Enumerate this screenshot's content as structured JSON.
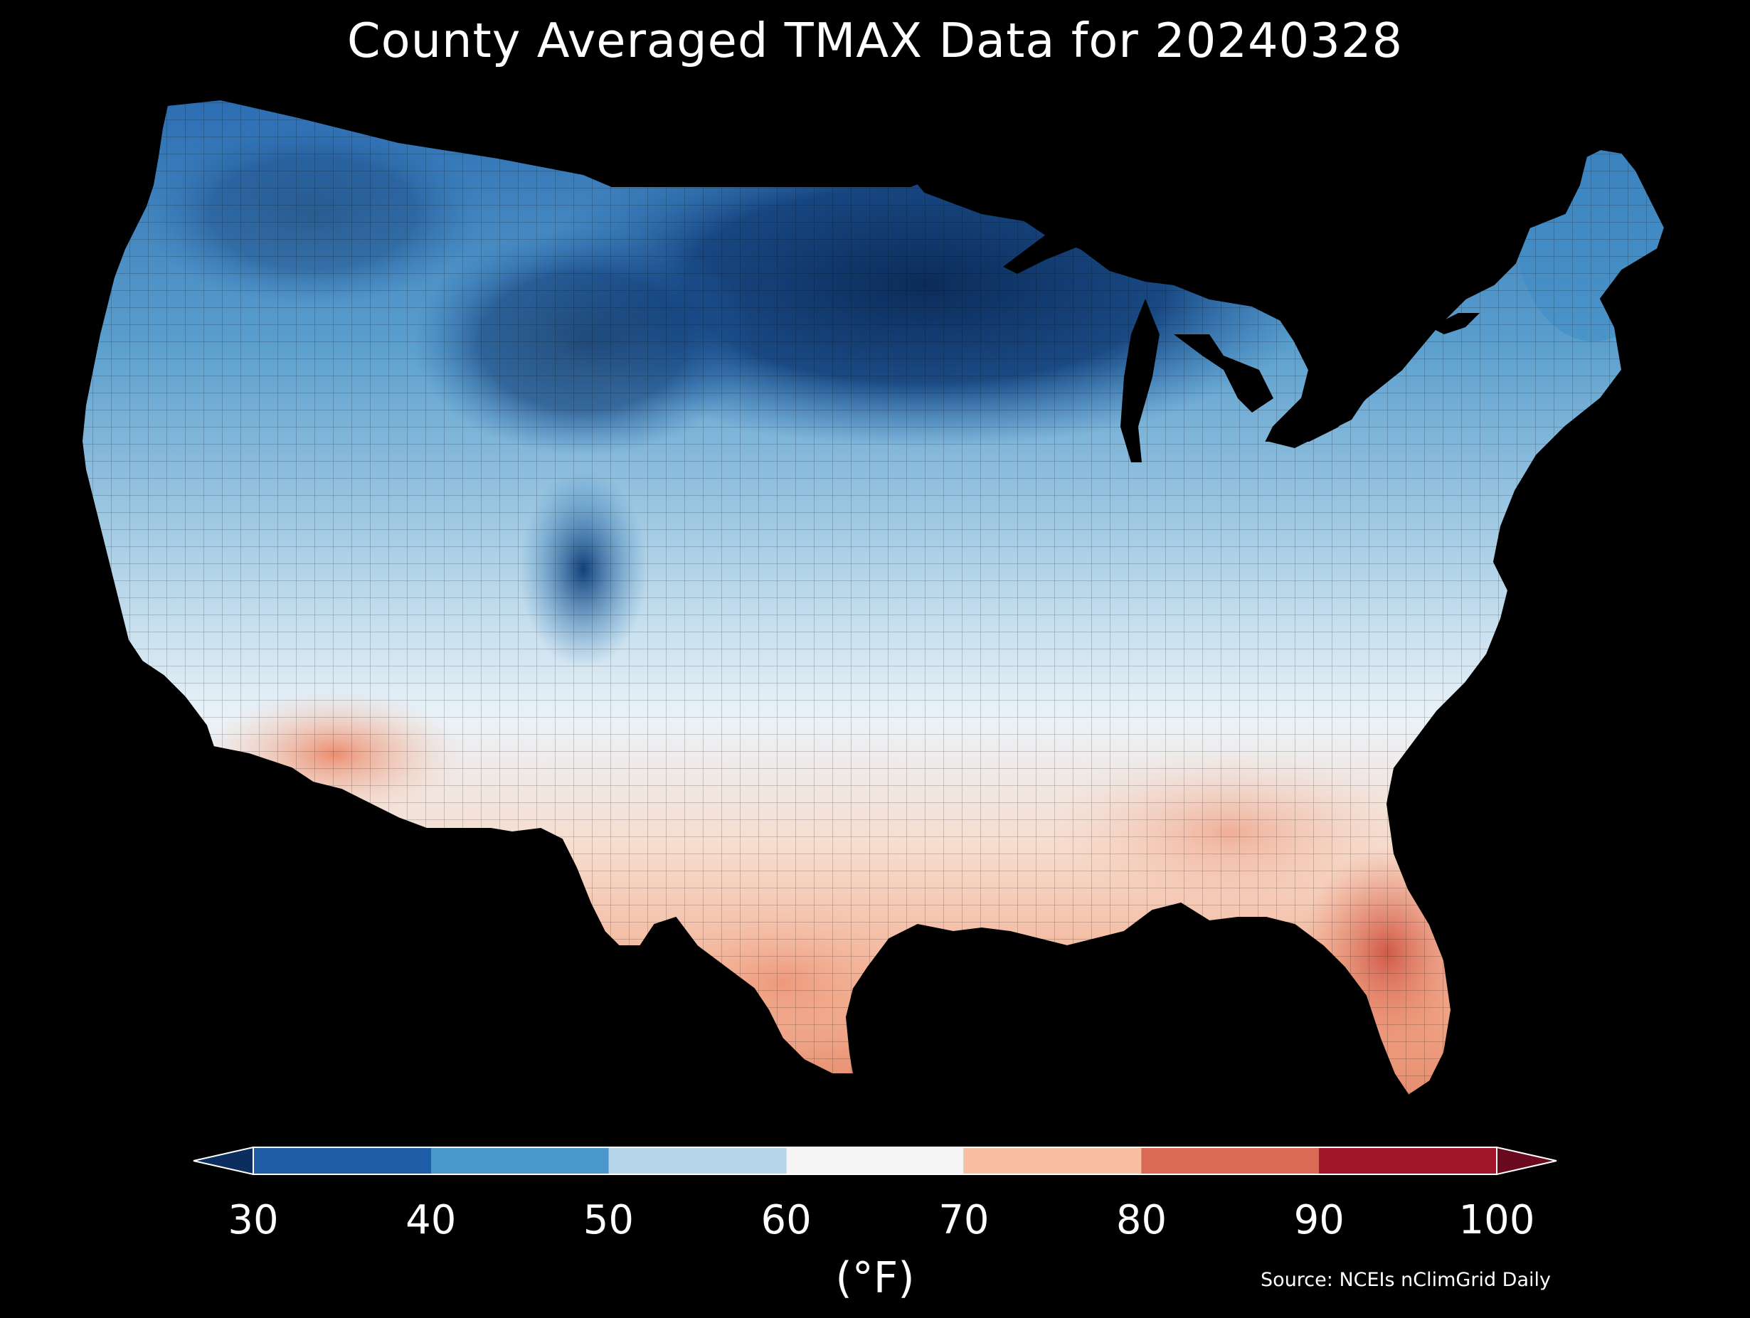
{
  "title": "County Averaged TMAX Data for 20240328",
  "colorbar": {
    "ticks": [
      "30",
      "40",
      "50",
      "60",
      "70",
      "80",
      "90",
      "100"
    ],
    "unit": "(°F)",
    "bins": [
      {
        "min": 30,
        "max": 40,
        "color": "#1f5da8"
      },
      {
        "min": 40,
        "max": 50,
        "color": "#4a98cb"
      },
      {
        "min": 50,
        "max": 60,
        "color": "#b5d6ea"
      },
      {
        "min": 60,
        "max": 70,
        "color": "#f5f5f5"
      },
      {
        "min": 70,
        "max": 80,
        "color": "#f8bfa1"
      },
      {
        "min": 80,
        "max": 90,
        "color": "#da6a55"
      },
      {
        "min": 90,
        "max": 100,
        "color": "#a11629"
      }
    ],
    "under_color": "#0c2e5e",
    "over_color": "#6a0a1e"
  },
  "source": "Source: NCEIs nClimGrid Daily",
  "colors": {
    "background": "#000000",
    "text": "#ffffff",
    "border": "#000000"
  }
}
